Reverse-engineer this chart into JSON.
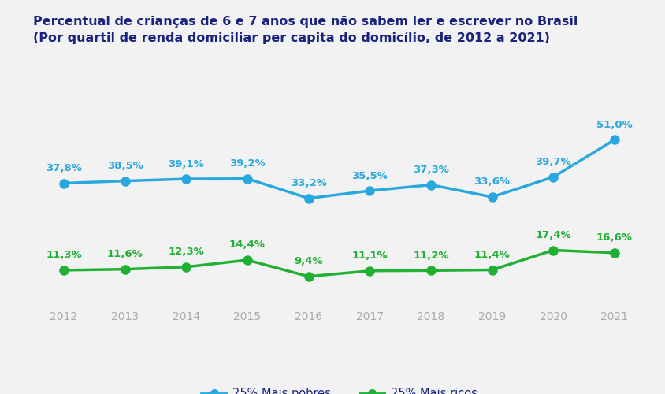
{
  "title_line1": "Percentual de crianças de 6 e 7 anos que não sabem ler e escrever no Brasil",
  "title_line2": "(Por quartil de renda domiciliar per capita do domicílio, de 2012 a 2021)",
  "years": [
    2012,
    2013,
    2014,
    2015,
    2016,
    2017,
    2018,
    2019,
    2020,
    2021
  ],
  "pobres": [
    37.8,
    38.5,
    39.1,
    39.2,
    33.2,
    35.5,
    37.3,
    33.6,
    39.7,
    51.0
  ],
  "ricos": [
    11.3,
    11.6,
    12.3,
    14.4,
    9.4,
    11.1,
    11.2,
    11.4,
    17.4,
    16.6
  ],
  "pobres_labels": [
    "37,8%",
    "38,5%",
    "39,1%",
    "39,2%",
    "33,2%",
    "35,5%",
    "37,3%",
    "33,6%",
    "39,7%",
    "51,0%"
  ],
  "ricos_labels": [
    "11,3%",
    "11,6%",
    "12,3%",
    "14,4%",
    "9,4%",
    "11,1%",
    "11,2%",
    "11,4%",
    "17,4%",
    "16,6%"
  ],
  "color_pobres": "#29a8e0",
  "color_ricos": "#21b033",
  "title_color": "#1a237e",
  "label_color_pobres": "#29a8e0",
  "label_color_ricos": "#21b033",
  "tick_color": "#aaaaaa",
  "bg_color": "#f2f2f2",
  "legend_label_pobres": "25% Mais pobres",
  "legend_label_ricos": "25% Mais ricos",
  "ylim": [
    0,
    60
  ],
  "marker_size": 8,
  "linewidth": 2.5,
  "title_fontsize": 11.5,
  "label_fontsize": 9.5,
  "tick_fontsize": 10,
  "legend_fontsize": 10.5
}
